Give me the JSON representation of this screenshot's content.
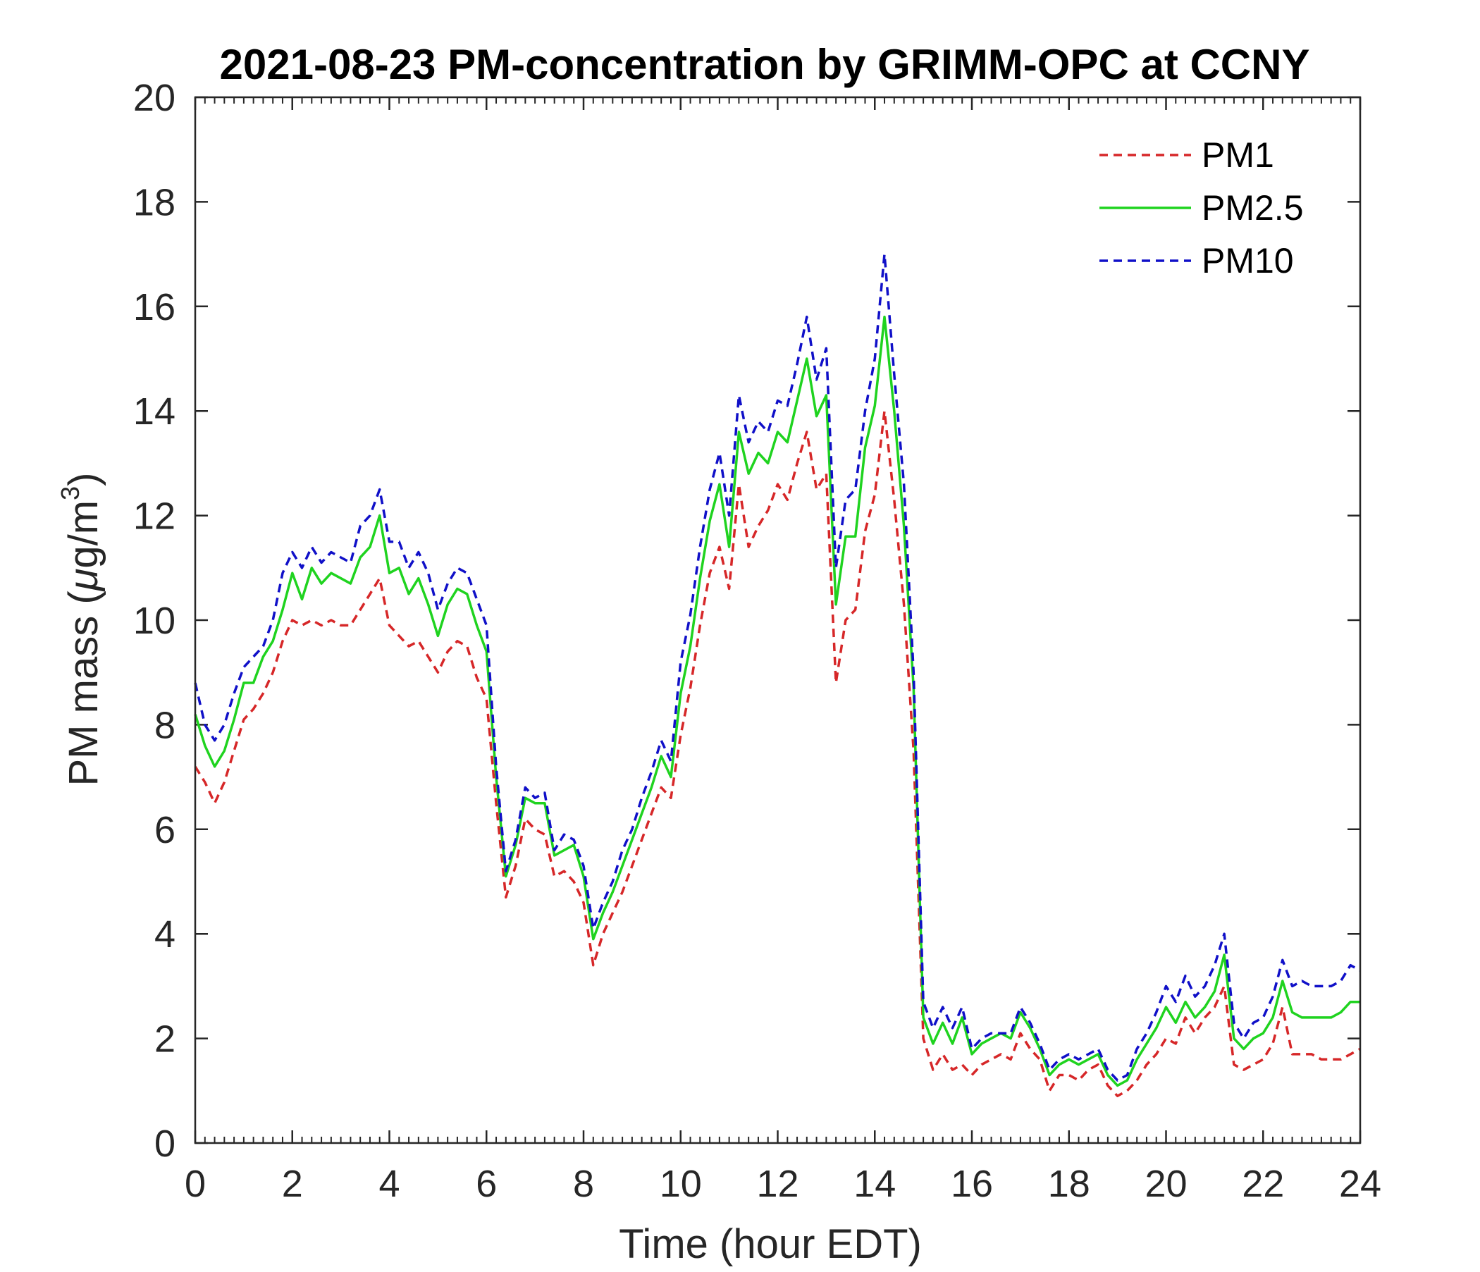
{
  "chart_data": {
    "type": "line",
    "title": "2021-08-23 PM-concentration by GRIMM-OPC at CCNY",
    "xlabel": "Time (hour EDT)",
    "ylabel_main": "PM mass (",
    "ylabel_mu": "μ",
    "ylabel_unit": "g/m",
    "ylabel_sup": "3",
    "ylabel_close": ")",
    "xlim": [
      0,
      24
    ],
    "ylim": [
      0,
      20
    ],
    "xticks": [
      0,
      2,
      4,
      6,
      8,
      10,
      12,
      14,
      16,
      18,
      20,
      22,
      24
    ],
    "yticks": [
      0,
      2,
      4,
      6,
      8,
      10,
      12,
      14,
      16,
      18,
      20
    ],
    "grid": false,
    "legend_position": "top-right",
    "x": [
      0,
      0.2,
      0.4,
      0.6,
      0.8,
      1.0,
      1.2,
      1.4,
      1.6,
      1.8,
      2.0,
      2.2,
      2.4,
      2.6,
      2.8,
      3.0,
      3.2,
      3.4,
      3.6,
      3.8,
      4.0,
      4.2,
      4.4,
      4.6,
      4.8,
      5.0,
      5.2,
      5.4,
      5.6,
      5.8,
      6.0,
      6.2,
      6.4,
      6.6,
      6.8,
      7.0,
      7.2,
      7.4,
      7.6,
      7.8,
      8.0,
      8.2,
      8.4,
      8.6,
      8.8,
      9.0,
      9.2,
      9.4,
      9.6,
      9.8,
      10.0,
      10.2,
      10.4,
      10.6,
      10.8,
      11.0,
      11.2,
      11.4,
      11.6,
      11.8,
      12.0,
      12.2,
      12.4,
      12.6,
      12.8,
      13.0,
      13.2,
      13.4,
      13.6,
      13.8,
      14.0,
      14.2,
      14.4,
      14.6,
      14.8,
      15.0,
      15.2,
      15.4,
      15.6,
      15.8,
      16.0,
      16.2,
      16.4,
      16.6,
      16.8,
      17.0,
      17.2,
      17.4,
      17.6,
      17.8,
      18.0,
      18.2,
      18.4,
      18.6,
      18.8,
      19.0,
      19.2,
      19.4,
      19.6,
      19.8,
      20.0,
      20.2,
      20.4,
      20.6,
      20.8,
      21.0,
      21.2,
      21.4,
      21.6,
      21.8,
      22.0,
      22.2,
      22.4,
      22.6,
      22.8,
      23.0,
      23.2,
      23.4,
      23.6,
      23.8,
      24.0
    ],
    "series": [
      {
        "name": "PM1",
        "color": "#d62728",
        "dash": "dashed",
        "values": [
          7.2,
          6.9,
          6.5,
          6.9,
          7.5,
          8.1,
          8.3,
          8.6,
          9.0,
          9.6,
          10.0,
          9.9,
          10.0,
          9.9,
          10.0,
          9.9,
          9.9,
          10.2,
          10.5,
          10.8,
          9.9,
          9.7,
          9.5,
          9.6,
          9.3,
          9.0,
          9.4,
          9.6,
          9.5,
          8.9,
          8.5,
          6.5,
          4.7,
          5.3,
          6.2,
          6.0,
          5.9,
          5.1,
          5.2,
          5.0,
          4.6,
          3.4,
          4.0,
          4.4,
          4.8,
          5.3,
          5.8,
          6.3,
          6.8,
          6.6,
          7.8,
          8.7,
          9.9,
          10.9,
          11.4,
          10.6,
          12.6,
          11.4,
          11.8,
          12.1,
          12.6,
          12.3,
          13.0,
          13.6,
          12.5,
          12.8,
          8.8,
          10.0,
          10.2,
          11.7,
          12.4,
          14.0,
          12.3,
          10.3,
          7.5,
          2.0,
          1.4,
          1.7,
          1.4,
          1.5,
          1.3,
          1.5,
          1.6,
          1.7,
          1.6,
          2.1,
          1.8,
          1.6,
          1.0,
          1.3,
          1.3,
          1.2,
          1.4,
          1.5,
          1.1,
          0.9,
          1.0,
          1.2,
          1.5,
          1.7,
          2.0,
          1.9,
          2.4,
          2.1,
          2.4,
          2.6,
          3.0,
          1.5,
          1.4,
          1.5,
          1.6,
          1.9,
          2.6,
          1.7,
          1.7,
          1.7,
          1.6,
          1.6,
          1.6,
          1.7,
          1.8
        ]
      },
      {
        "name": "PM2.5",
        "color": "#1fd31f",
        "dash": "solid",
        "values": [
          8.2,
          7.6,
          7.2,
          7.5,
          8.1,
          8.8,
          8.8,
          9.3,
          9.6,
          10.2,
          10.9,
          10.4,
          11.0,
          10.7,
          10.9,
          10.8,
          10.7,
          11.2,
          11.4,
          12.0,
          10.9,
          11.0,
          10.5,
          10.8,
          10.3,
          9.7,
          10.3,
          10.6,
          10.5,
          9.9,
          9.4,
          7.0,
          5.1,
          5.7,
          6.6,
          6.5,
          6.5,
          5.5,
          5.6,
          5.7,
          5.1,
          3.9,
          4.4,
          4.8,
          5.3,
          5.8,
          6.3,
          6.8,
          7.4,
          7.0,
          8.6,
          9.5,
          10.8,
          11.9,
          12.6,
          11.4,
          13.6,
          12.8,
          13.2,
          13.0,
          13.6,
          13.4,
          14.2,
          15.0,
          13.9,
          14.3,
          10.3,
          11.6,
          11.6,
          13.3,
          14.1,
          15.8,
          14.0,
          11.8,
          8.7,
          2.4,
          1.9,
          2.3,
          1.9,
          2.4,
          1.7,
          1.9,
          2.0,
          2.1,
          2.0,
          2.5,
          2.2,
          1.8,
          1.3,
          1.5,
          1.6,
          1.5,
          1.6,
          1.7,
          1.3,
          1.1,
          1.2,
          1.6,
          1.9,
          2.2,
          2.6,
          2.3,
          2.7,
          2.4,
          2.6,
          2.9,
          3.6,
          2.0,
          1.8,
          2.0,
          2.1,
          2.4,
          3.1,
          2.5,
          2.4,
          2.4,
          2.4,
          2.4,
          2.5,
          2.7,
          2.7
        ]
      },
      {
        "name": "PM10",
        "color": "#1010c8",
        "dash": "dashed",
        "values": [
          8.8,
          8.0,
          7.7,
          8.0,
          8.6,
          9.1,
          9.3,
          9.5,
          10.0,
          10.9,
          11.3,
          11.0,
          11.4,
          11.1,
          11.3,
          11.2,
          11.1,
          11.8,
          12.0,
          12.5,
          11.5,
          11.5,
          11.0,
          11.3,
          10.9,
          10.2,
          10.7,
          11.0,
          10.9,
          10.4,
          9.9,
          7.2,
          5.2,
          5.8,
          6.8,
          6.6,
          6.7,
          5.6,
          5.9,
          5.8,
          5.3,
          4.1,
          4.6,
          5.0,
          5.6,
          6.0,
          6.6,
          7.1,
          7.7,
          7.3,
          9.2,
          10.1,
          11.4,
          12.5,
          13.2,
          12.0,
          14.3,
          13.4,
          13.8,
          13.6,
          14.2,
          14.1,
          14.9,
          15.8,
          14.6,
          15.2,
          11.0,
          12.3,
          12.5,
          14.0,
          15.0,
          17.0,
          14.7,
          12.6,
          9.0,
          2.7,
          2.2,
          2.6,
          2.2,
          2.6,
          1.8,
          2.0,
          2.1,
          2.1,
          2.1,
          2.6,
          2.3,
          1.9,
          1.4,
          1.6,
          1.7,
          1.6,
          1.7,
          1.8,
          1.4,
          1.2,
          1.3,
          1.8,
          2.1,
          2.5,
          3.0,
          2.7,
          3.2,
          2.8,
          3.0,
          3.4,
          4.0,
          2.3,
          2.0,
          2.3,
          2.4,
          2.8,
          3.5,
          3.0,
          3.1,
          3.0,
          3.0,
          3.0,
          3.1,
          3.4,
          3.3
        ]
      }
    ]
  }
}
